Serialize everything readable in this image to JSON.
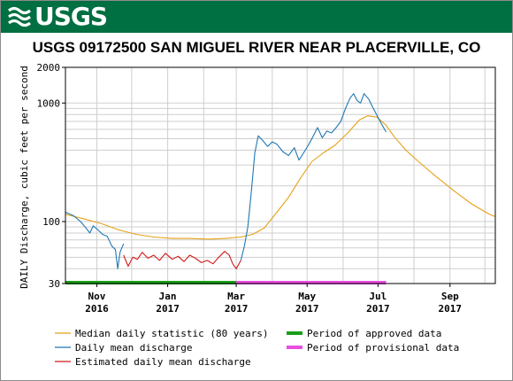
{
  "logo": {
    "text": "USGS"
  },
  "chart_data": {
    "type": "line",
    "title": "USGS 09172500 SAN MIGUEL RIVER NEAR PLACERVILLE, CO",
    "ylabel": "DAILY Discharge, cubic feet per second",
    "xlabel": "",
    "yscale": "log",
    "ylim": [
      30,
      2000
    ],
    "xlim": [
      "2016-10-05",
      "2017-10-10"
    ],
    "y_ticks": [
      {
        "value": 30,
        "label": "30"
      },
      {
        "value": 100,
        "label": "100"
      },
      {
        "value": 1000,
        "label": "1000"
      },
      {
        "value": 2000,
        "label": "2000"
      }
    ],
    "x_ticks": [
      {
        "date": "2016-11-01",
        "month": "Nov",
        "year": "2016"
      },
      {
        "date": "2017-01-01",
        "month": "Jan",
        "year": "2017"
      },
      {
        "date": "2017-03-01",
        "month": "Mar",
        "year": "2017"
      },
      {
        "date": "2017-05-01",
        "month": "May",
        "year": "2017"
      },
      {
        "date": "2017-07-01",
        "month": "Jul",
        "year": "2017"
      },
      {
        "date": "2017-09-01",
        "month": "Sep",
        "year": "2017"
      }
    ],
    "grid": true,
    "series": [
      {
        "name": "Median daily statistic (80 years)",
        "color": "#e5a117",
        "points": [
          [
            "2016-10-05",
            115
          ],
          [
            "2016-10-20",
            106
          ],
          [
            "2016-11-05",
            96
          ],
          [
            "2016-11-20",
            85
          ],
          [
            "2016-12-05",
            78
          ],
          [
            "2016-12-20",
            74
          ],
          [
            "2017-01-05",
            72
          ],
          [
            "2017-01-20",
            72
          ],
          [
            "2017-02-05",
            71
          ],
          [
            "2017-02-20",
            72
          ],
          [
            "2017-03-05",
            74
          ],
          [
            "2017-03-15",
            78
          ],
          [
            "2017-03-25",
            88
          ],
          [
            "2017-04-05",
            120
          ],
          [
            "2017-04-15",
            160
          ],
          [
            "2017-04-25",
            230
          ],
          [
            "2017-05-05",
            320
          ],
          [
            "2017-05-15",
            380
          ],
          [
            "2017-05-25",
            440
          ],
          [
            "2017-06-05",
            560
          ],
          [
            "2017-06-15",
            720
          ],
          [
            "2017-06-22",
            780
          ],
          [
            "2017-06-30",
            760
          ],
          [
            "2017-07-08",
            650
          ],
          [
            "2017-07-15",
            520
          ],
          [
            "2017-07-25",
            400
          ],
          [
            "2017-08-05",
            320
          ],
          [
            "2017-08-20",
            240
          ],
          [
            "2017-09-05",
            180
          ],
          [
            "2017-09-20",
            140
          ],
          [
            "2017-10-05",
            115
          ],
          [
            "2017-10-10",
            110
          ]
        ]
      },
      {
        "name": "Daily mean discharge",
        "color": "#1f77b4",
        "points": [
          [
            "2016-10-05",
            120
          ],
          [
            "2016-10-12",
            112
          ],
          [
            "2016-10-18",
            100
          ],
          [
            "2016-10-22",
            90
          ],
          [
            "2016-10-26",
            80
          ],
          [
            "2016-10-29",
            92
          ],
          [
            "2016-11-02",
            85
          ],
          [
            "2016-11-06",
            78
          ],
          [
            "2016-11-10",
            75
          ],
          [
            "2016-11-14",
            62
          ],
          [
            "2016-11-17",
            58
          ],
          [
            "2016-11-19",
            40
          ],
          [
            "2016-11-21",
            55
          ],
          [
            "2016-11-24",
            65
          ]
        ]
      },
      {
        "name": "Daily mean discharge",
        "color": "#1f77b4",
        "points": [
          [
            "2017-03-05",
            47
          ],
          [
            "2017-03-08",
            62
          ],
          [
            "2017-03-11",
            90
          ],
          [
            "2017-03-14",
            180
          ],
          [
            "2017-03-17",
            380
          ],
          [
            "2017-03-20",
            530
          ],
          [
            "2017-03-24",
            480
          ],
          [
            "2017-03-28",
            430
          ],
          [
            "2017-04-01",
            470
          ],
          [
            "2017-04-05",
            450
          ],
          [
            "2017-04-10",
            390
          ],
          [
            "2017-04-15",
            360
          ],
          [
            "2017-04-20",
            420
          ],
          [
            "2017-04-24",
            330
          ],
          [
            "2017-04-28",
            380
          ],
          [
            "2017-05-02",
            440
          ],
          [
            "2017-05-06",
            520
          ],
          [
            "2017-05-10",
            620
          ],
          [
            "2017-05-14",
            510
          ],
          [
            "2017-05-18",
            580
          ],
          [
            "2017-05-22",
            560
          ],
          [
            "2017-05-26",
            620
          ],
          [
            "2017-05-30",
            700
          ],
          [
            "2017-06-03",
            900
          ],
          [
            "2017-06-07",
            1100
          ],
          [
            "2017-06-10",
            1200
          ],
          [
            "2017-06-13",
            1050
          ],
          [
            "2017-06-16",
            1000
          ],
          [
            "2017-06-19",
            1200
          ],
          [
            "2017-06-23",
            1080
          ],
          [
            "2017-06-27",
            900
          ],
          [
            "2017-07-01",
            760
          ],
          [
            "2017-07-05",
            640
          ],
          [
            "2017-07-08",
            570
          ]
        ]
      },
      {
        "name": "Estimated daily mean discharge",
        "color": "#d11a1a",
        "points": [
          [
            "2016-11-24",
            52
          ],
          [
            "2016-11-28",
            42
          ],
          [
            "2016-12-02",
            50
          ],
          [
            "2016-12-06",
            48
          ],
          [
            "2016-12-10",
            55
          ],
          [
            "2016-12-15",
            49
          ],
          [
            "2016-12-20",
            52
          ],
          [
            "2016-12-25",
            47
          ],
          [
            "2016-12-30",
            54
          ],
          [
            "2017-01-05",
            48
          ],
          [
            "2017-01-10",
            51
          ],
          [
            "2017-01-15",
            46
          ],
          [
            "2017-01-20",
            52
          ],
          [
            "2017-01-25",
            49
          ],
          [
            "2017-01-30",
            45
          ],
          [
            "2017-02-04",
            47
          ],
          [
            "2017-02-09",
            44
          ],
          [
            "2017-02-14",
            50
          ],
          [
            "2017-02-19",
            56
          ],
          [
            "2017-02-23",
            52
          ],
          [
            "2017-02-26",
            44
          ],
          [
            "2017-03-01",
            40
          ],
          [
            "2017-03-05",
            47
          ]
        ]
      }
    ],
    "periods": [
      {
        "name": "Period of approved data",
        "color": "#1a9e1a",
        "start": "2016-10-05",
        "end": "2017-03-01"
      },
      {
        "name": "Period of provisional data",
        "color": "#e84fe0",
        "start": "2017-03-01",
        "end": "2017-07-08"
      }
    ],
    "legend": [
      {
        "label": "Median daily statistic (80 years)",
        "color": "#e5a117",
        "kind": "line"
      },
      {
        "label": "Daily mean discharge",
        "color": "#1f77b4",
        "kind": "line"
      },
      {
        "label": "Estimated daily mean discharge",
        "color": "#d11a1a",
        "kind": "line"
      },
      {
        "label": "Period of approved data",
        "color": "#1a9e1a",
        "kind": "bar"
      },
      {
        "label": "Period of provisional data",
        "color": "#e84fe0",
        "kind": "bar"
      }
    ],
    "legend_position": "bottom"
  }
}
